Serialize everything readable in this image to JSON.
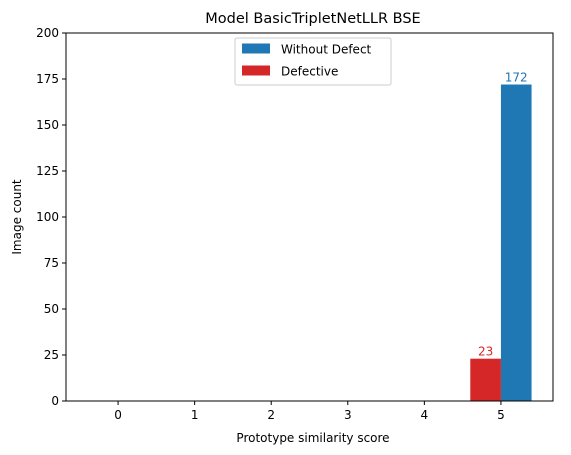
{
  "chart_data": {
    "type": "bar",
    "title": "Model BasicTripletNetLLR BSE",
    "xlabel": "Prototype similarity score",
    "ylabel": "Image count",
    "categories": [
      "0",
      "1",
      "2",
      "3",
      "4",
      "5"
    ],
    "x": [
      0,
      1,
      2,
      3,
      4,
      5
    ],
    "xlim": [
      -0.68,
      5.68
    ],
    "ylim": [
      0,
      200
    ],
    "yticks": [
      0,
      25,
      50,
      75,
      100,
      125,
      150,
      175,
      200
    ],
    "grid": false,
    "legend_position": "top-center",
    "series": [
      {
        "name": "Without Defect",
        "color": "#1f77b4",
        "offset": 0.2,
        "values": [
          0,
          0,
          0,
          0,
          0,
          172
        ],
        "data_labels": [
          null,
          null,
          null,
          null,
          null,
          "172"
        ]
      },
      {
        "name": "Defective",
        "color": "#d62728",
        "offset": -0.2,
        "values": [
          0,
          0,
          0,
          0,
          0,
          23
        ],
        "data_labels": [
          null,
          null,
          null,
          null,
          null,
          "23"
        ]
      }
    ],
    "bar_width": 0.4
  }
}
